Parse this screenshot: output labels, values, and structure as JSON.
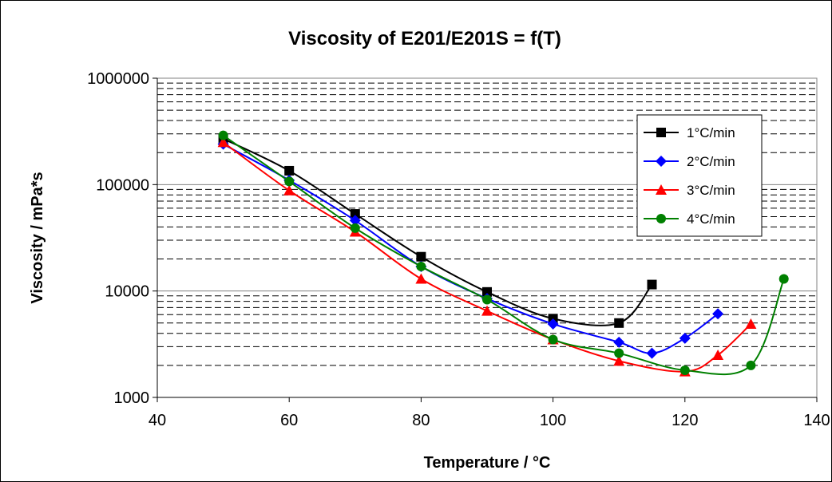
{
  "chart_data": {
    "type": "line",
    "title": "Viscosity of E201/E201S = f(T)",
    "xlabel": "Temperature  /  °C",
    "ylabel": "Viscosity / mPa*s",
    "xlim": [
      40,
      140
    ],
    "ylim": [
      1000,
      1000000
    ],
    "yscale": "log",
    "x_ticks": [
      40,
      60,
      80,
      100,
      120,
      140
    ],
    "x_tick_labels": [
      "40",
      "60",
      "80",
      "100",
      "120",
      "140"
    ],
    "y_ticks": [
      1000,
      10000,
      100000,
      1000000
    ],
    "y_tick_labels": [
      "1000",
      "10000",
      "100000",
      "1000000"
    ],
    "grid": "major solid, minor dashed (horizontal)",
    "legend_position": "right",
    "series": [
      {
        "name": "1°C/min",
        "color": "#000000",
        "marker": "square",
        "x": [
          50,
          60,
          70,
          80,
          90,
          100,
          110,
          115
        ],
        "y": [
          270000,
          135000,
          53000,
          21000,
          9800,
          5500,
          5000,
          11500
        ]
      },
      {
        "name": "2°C/min",
        "color": "#0000ff",
        "marker": "diamond",
        "x": [
          50,
          60,
          70,
          80,
          90,
          100,
          110,
          115,
          120,
          125
        ],
        "y": [
          240000,
          110000,
          46000,
          17000,
          8500,
          4900,
          3300,
          2600,
          3600,
          6100
        ]
      },
      {
        "name": "3°C/min",
        "color": "#ff0000",
        "marker": "triangle",
        "x": [
          50,
          60,
          70,
          80,
          90,
          100,
          110,
          120,
          125,
          130
        ],
        "y": [
          250000,
          88000,
          36000,
          13000,
          6500,
          3500,
          2200,
          1750,
          2500,
          4900
        ]
      },
      {
        "name": "4°C/min",
        "color": "#008000",
        "marker": "circle",
        "x": [
          50,
          60,
          70,
          80,
          90,
          100,
          110,
          120,
          130,
          135
        ],
        "y": [
          290000,
          107000,
          39000,
          17000,
          8300,
          3500,
          2600,
          1800,
          2000,
          13000
        ]
      }
    ]
  }
}
